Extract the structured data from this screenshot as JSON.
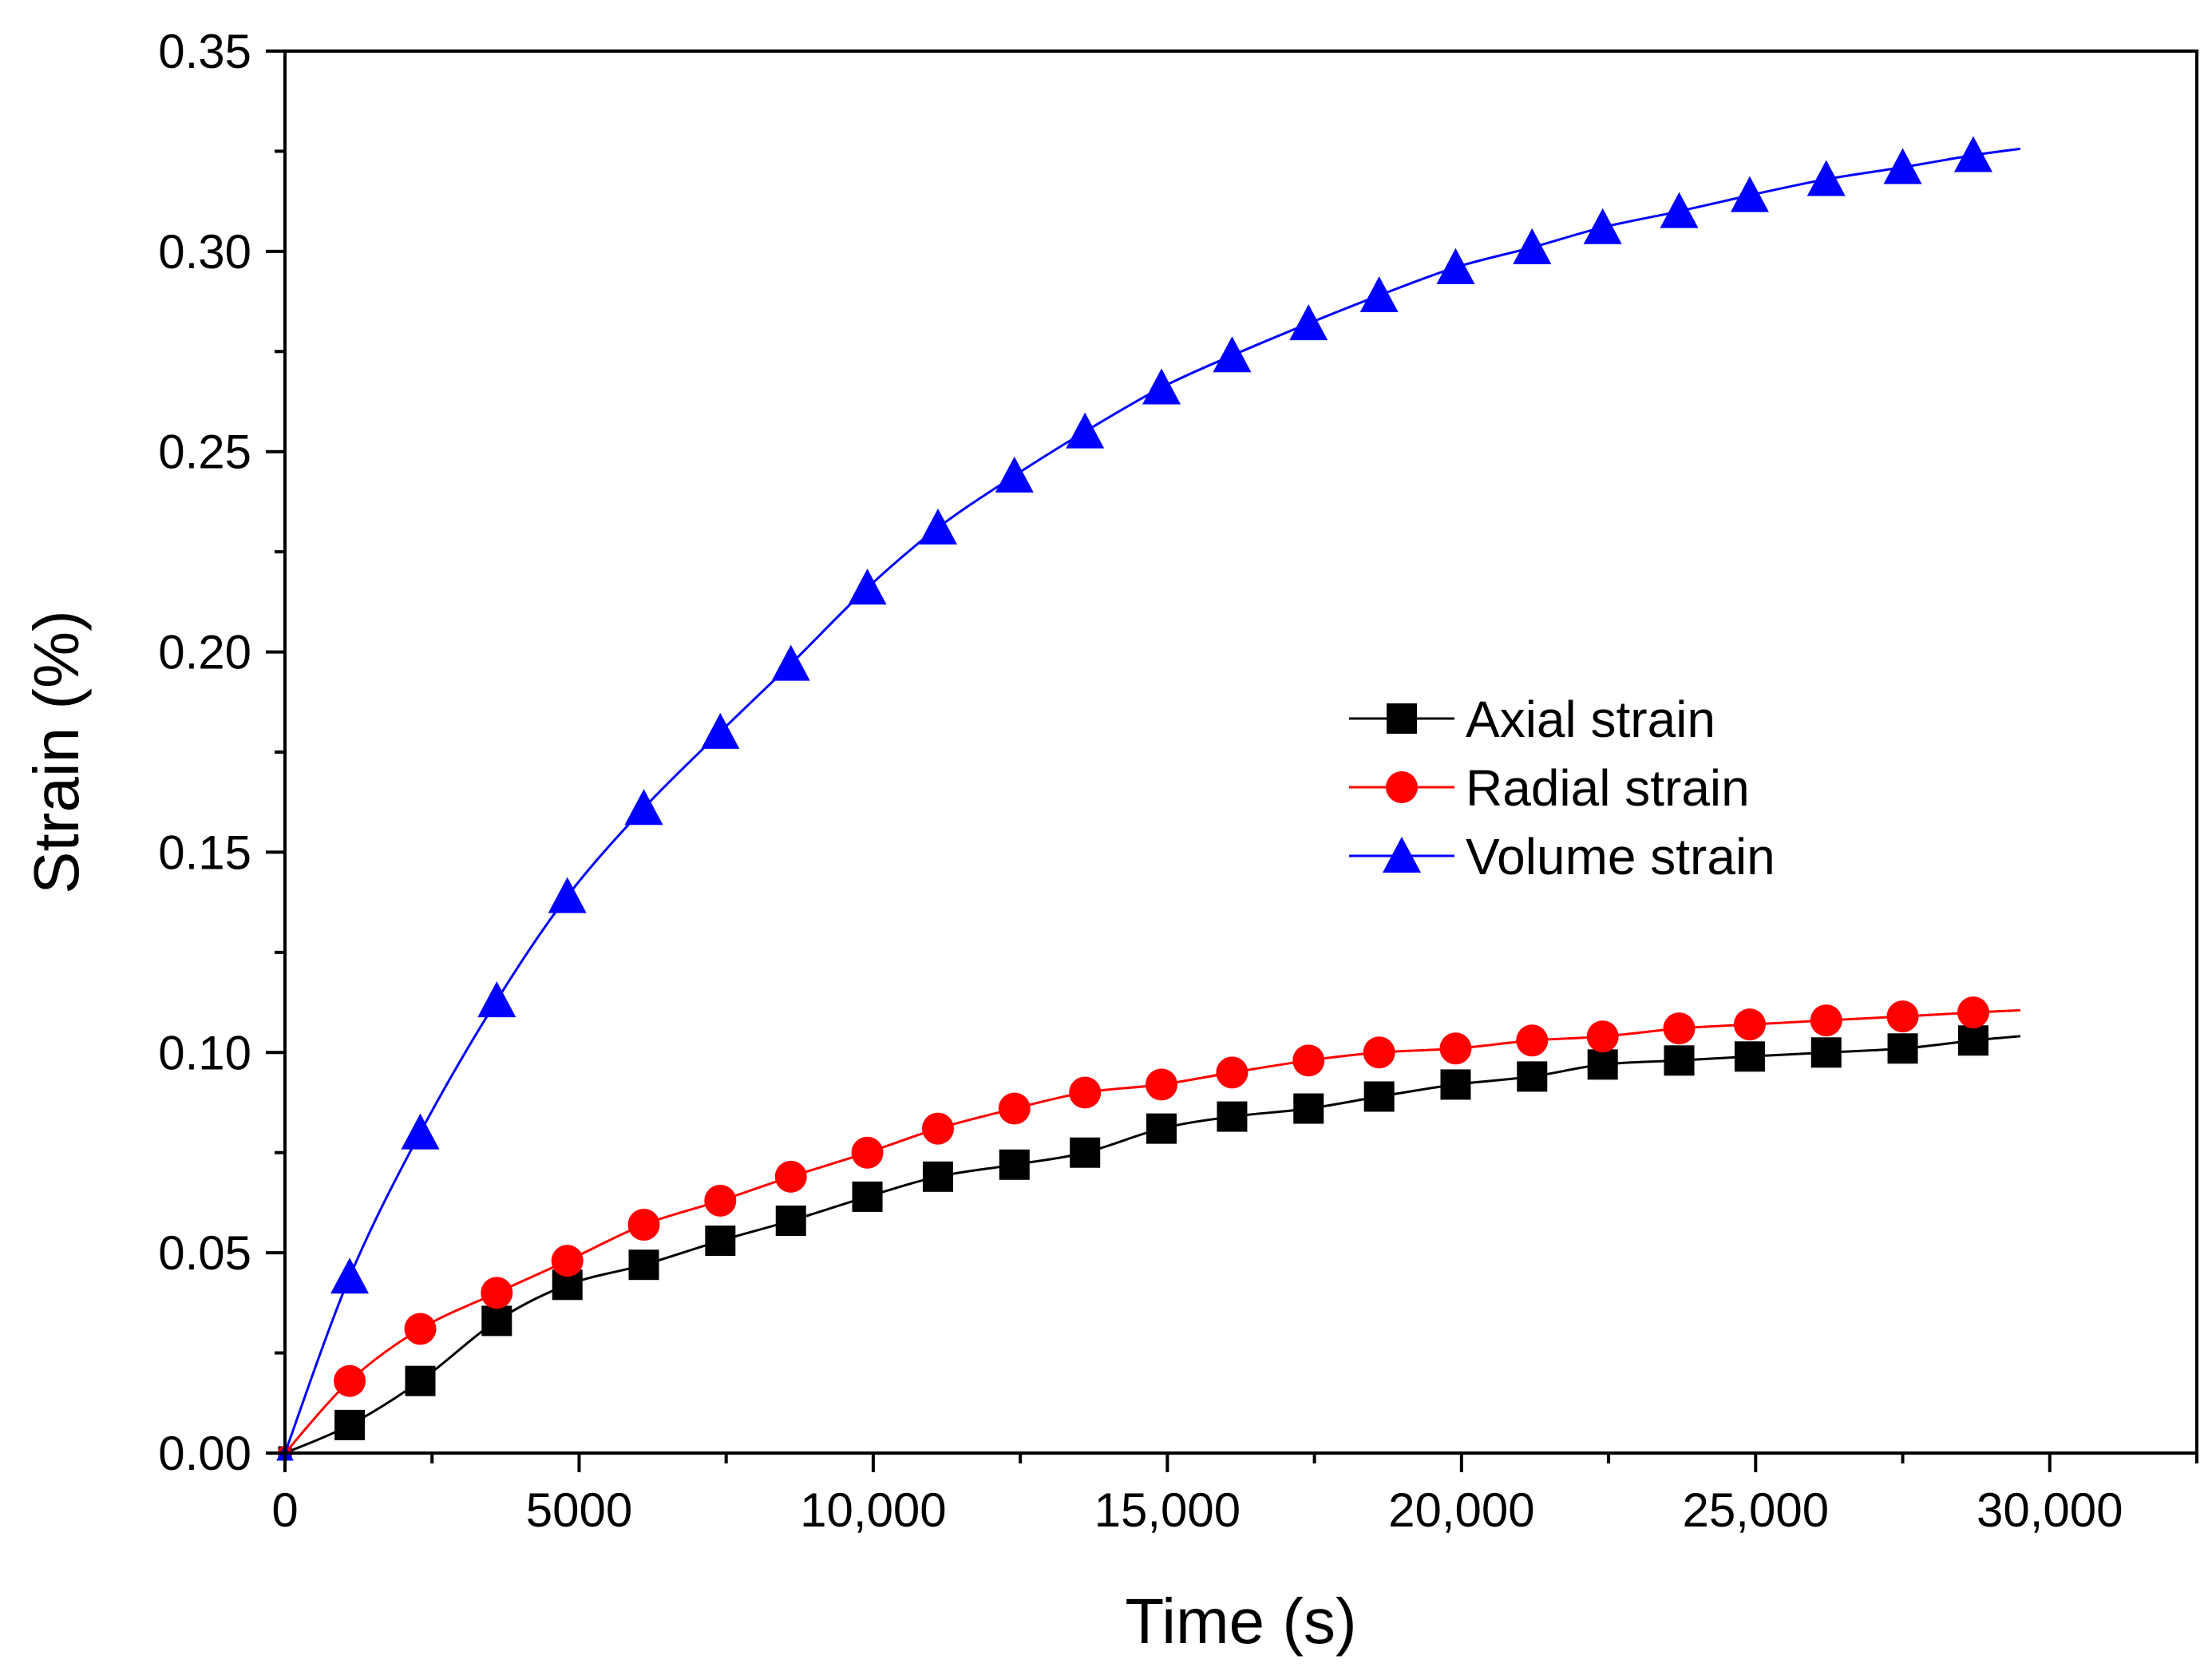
{
  "chart_data": {
    "type": "line",
    "xlabel": "Time (s)",
    "ylabel": "Strain (%)",
    "xlim": [
      0,
      32500
    ],
    "ylim": [
      0,
      0.35
    ],
    "grid": false,
    "legend_position": "center-right",
    "x_ticks": [
      {
        "value": 0,
        "label": "0"
      },
      {
        "value": 5000,
        "label": "5000"
      },
      {
        "value": 10000,
        "label": "10,000"
      },
      {
        "value": 15000,
        "label": "15,000"
      },
      {
        "value": 20000,
        "label": "20,000"
      },
      {
        "value": 25000,
        "label": "25,000"
      },
      {
        "value": 30000,
        "label": "30,000"
      }
    ],
    "y_ticks": [
      {
        "value": 0.0,
        "label": "0.00"
      },
      {
        "value": 0.05,
        "label": "0.05"
      },
      {
        "value": 0.1,
        "label": "0.10"
      },
      {
        "value": 0.15,
        "label": "0.15"
      },
      {
        "value": 0.2,
        "label": "0.20"
      },
      {
        "value": 0.25,
        "label": "0.25"
      },
      {
        "value": 0.3,
        "label": "0.30"
      },
      {
        "value": 0.35,
        "label": "0.35"
      }
    ],
    "series": [
      {
        "name": "Axial strain",
        "color": "#000000",
        "marker": "square",
        "line_end_x": 29500,
        "x": [
          0,
          1100,
          2300,
          3600,
          4800,
          6100,
          7400,
          8600,
          9900,
          11100,
          12400,
          13600,
          14900,
          16100,
          17400,
          18600,
          19900,
          21200,
          22400,
          23700,
          24900,
          26200,
          27500,
          28700
        ],
        "values": [
          0.0,
          0.007,
          0.018,
          0.033,
          0.042,
          0.047,
          0.053,
          0.058,
          0.064,
          0.069,
          0.072,
          0.075,
          0.081,
          0.084,
          0.086,
          0.089,
          0.092,
          0.094,
          0.097,
          0.098,
          0.099,
          0.1,
          0.101,
          0.103
        ]
      },
      {
        "name": "Radial strain",
        "color": "#ff0000",
        "marker": "circle",
        "line_end_x": 29500,
        "x": [
          0,
          1100,
          2300,
          3600,
          4800,
          6100,
          7400,
          8600,
          9900,
          11100,
          12400,
          13600,
          14900,
          16100,
          17400,
          18600,
          19900,
          21200,
          22400,
          23700,
          24900,
          26200,
          27500,
          28700
        ],
        "values": [
          0.0,
          0.018,
          0.031,
          0.04,
          0.048,
          0.057,
          0.063,
          0.069,
          0.075,
          0.081,
          0.086,
          0.09,
          0.092,
          0.095,
          0.098,
          0.1,
          0.101,
          0.103,
          0.104,
          0.106,
          0.107,
          0.108,
          0.109,
          0.11
        ]
      },
      {
        "name": "Volume strain",
        "color": "#0000ff",
        "marker": "triangle",
        "line_end_x": 29500,
        "x": [
          0,
          1100,
          2300,
          3600,
          4800,
          6100,
          7400,
          8600,
          9900,
          11100,
          12400,
          13600,
          14900,
          16100,
          17400,
          18600,
          19900,
          21200,
          22400,
          23700,
          24900,
          26200,
          27500,
          28700
        ],
        "values": [
          0.0,
          0.044,
          0.08,
          0.113,
          0.139,
          0.161,
          0.18,
          0.197,
          0.216,
          0.231,
          0.244,
          0.255,
          0.266,
          0.274,
          0.282,
          0.289,
          0.296,
          0.301,
          0.306,
          0.31,
          0.314,
          0.318,
          0.321,
          0.324
        ]
      }
    ]
  }
}
